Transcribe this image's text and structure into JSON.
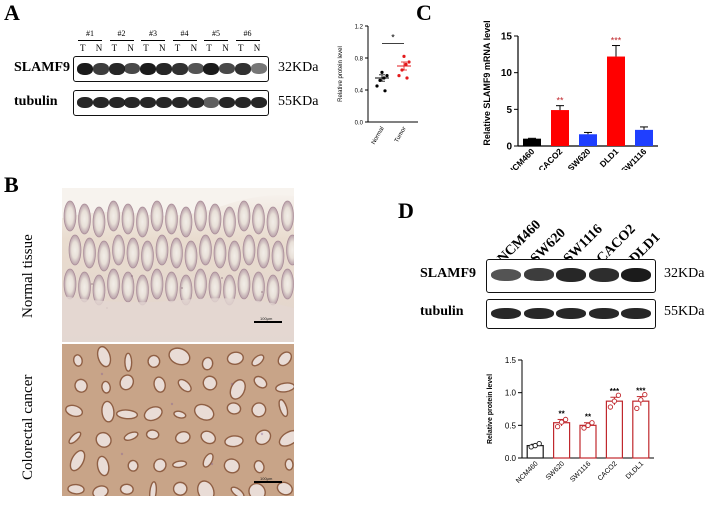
{
  "panels": {
    "a": {
      "letter": "A",
      "sample_labels": [
        "#1",
        "#2",
        "#3",
        "#4",
        "#5",
        "#6"
      ],
      "lane_labels": [
        "T",
        "N",
        "T",
        "N",
        "T",
        "N",
        "T",
        "N",
        "T",
        "N",
        "T",
        "N"
      ],
      "rows": [
        {
          "label": "SLAMF9",
          "kda": "32KDa"
        },
        {
          "label": "tubulin",
          "kda": "55KDa"
        }
      ]
    },
    "b": {
      "letter": "B",
      "tissues": [
        {
          "label": "Normal tissue",
          "scale": "100μm"
        },
        {
          "label": "Colorectal cancer",
          "scale": "100μm"
        }
      ]
    },
    "c": {
      "letter": "C"
    },
    "d": {
      "letter": "D",
      "lane_labels": [
        "NCM460",
        "SW620",
        "SW1116",
        "CACO2",
        "DLD1"
      ],
      "rows": [
        {
          "label": "SLAMF9",
          "kda": "32KDa"
        },
        {
          "label": "tubulin",
          "kda": "55KDa"
        }
      ]
    }
  },
  "chart_data": [
    {
      "id": "a-dot",
      "type": "scatter",
      "xlabel": "",
      "ylabel": "Relative protein level",
      "ylim": [
        0,
        1.2
      ],
      "yticks": [
        "0.0",
        "0.4",
        "0.8",
        "1.2"
      ],
      "categories": [
        "Normal",
        "Tumor"
      ],
      "points": [
        {
          "category": "Normal",
          "values": [
            0.45,
            0.52,
            0.55,
            0.58,
            0.62,
            0.39
          ]
        },
        {
          "category": "Tumor",
          "values": [
            0.58,
            0.65,
            0.72,
            0.75,
            0.82,
            0.55
          ]
        }
      ],
      "means": [
        0.55,
        0.7
      ],
      "sem": [
        0.04,
        0.05
      ],
      "colors": {
        "Normal": "#000000",
        "Tumor": "#e31a1c"
      },
      "annotations": [
        "*"
      ]
    },
    {
      "id": "c-bar",
      "type": "bar",
      "xlabel": "",
      "ylabel": "Relative SLAMF9 mRNA level",
      "ylim": [
        0,
        15
      ],
      "yticks": [
        "0",
        "5",
        "10",
        "15"
      ],
      "categories": [
        "NCM460",
        "CACO2",
        "SW620",
        "DLD1",
        "SW1116"
      ],
      "values": [
        1.0,
        4.9,
        1.6,
        12.2,
        2.2
      ],
      "errors": [
        0.05,
        0.6,
        0.25,
        1.5,
        0.4
      ],
      "colors": [
        "#000000",
        "#ff0000",
        "#1f3fff",
        "#ff0000",
        "#1f3fff"
      ],
      "significance": [
        "",
        "**",
        "",
        "***",
        ""
      ]
    },
    {
      "id": "d-bar",
      "type": "bar",
      "xlabel": "",
      "ylabel": "Relative protein level",
      "ylim": [
        0,
        1.5
      ],
      "yticks": [
        "0.0",
        "0.5",
        "1.0",
        "1.5"
      ],
      "categories": [
        "NCM460",
        "SW620",
        "SW1116",
        "CACO2",
        "DLDL1"
      ],
      "values": [
        0.19,
        0.54,
        0.5,
        0.87,
        0.87
      ],
      "errors": [
        0.02,
        0.05,
        0.04,
        0.06,
        0.07
      ],
      "points": [
        [
          0.17,
          0.19,
          0.22
        ],
        [
          0.48,
          0.55,
          0.59
        ],
        [
          0.46,
          0.5,
          0.54
        ],
        [
          0.78,
          0.87,
          0.96
        ],
        [
          0.76,
          0.89,
          0.97
        ]
      ],
      "colors": [
        "#1a1a1a",
        "#c0282d",
        "#c0282d",
        "#c0282d",
        "#c0282d"
      ],
      "significance": [
        "",
        "**",
        "**",
        "***",
        "***"
      ]
    }
  ]
}
